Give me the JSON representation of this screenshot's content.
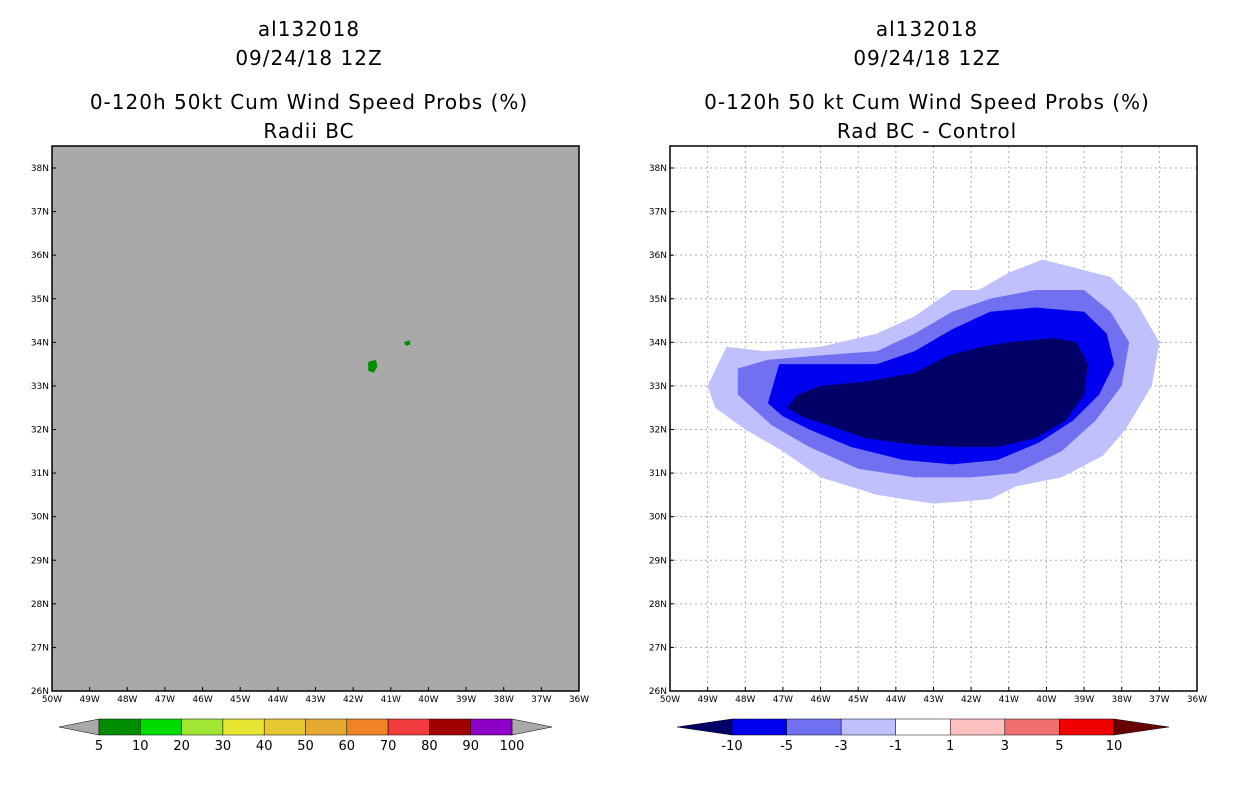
{
  "chart_data": [
    {
      "type": "heatmap",
      "storm_id": "al132018",
      "datetime": "09/24/18 12Z",
      "title": "0-120h 50kt Cum Wind Speed Probs (%)",
      "subtitle": "Radii BC",
      "x_ticks": [
        "50W",
        "49W",
        "48W",
        "47W",
        "46W",
        "45W",
        "44W",
        "43W",
        "42W",
        "41W",
        "40W",
        "39W",
        "38W",
        "37W",
        "36W"
      ],
      "y_ticks": [
        "26N",
        "27N",
        "28N",
        "29N",
        "30N",
        "31N",
        "32N",
        "33N",
        "34N",
        "35N",
        "36N",
        "37N",
        "38N"
      ],
      "xlim": [
        -50,
        -36
      ],
      "ylim": [
        26,
        38.5
      ],
      "grid": false,
      "background_color": "#a9a9a9",
      "features": [
        {
          "name": "5-10% patch",
          "color": "#008c00",
          "lonlat": [
            [
              -41.6,
              33.55
            ],
            [
              -41.4,
              33.6
            ],
            [
              -41.35,
              33.45
            ],
            [
              -41.45,
              33.3
            ],
            [
              -41.6,
              33.35
            ]
          ]
        },
        {
          "name": "5-10% patch",
          "color": "#008c00",
          "lonlat": [
            [
              -40.65,
              34.0
            ],
            [
              -40.5,
              34.05
            ],
            [
              -40.48,
              33.95
            ],
            [
              -40.6,
              33.92
            ]
          ]
        }
      ],
      "colorbar": {
        "labels": [
          "5",
          "10",
          "20",
          "30",
          "40",
          "50",
          "60",
          "70",
          "80",
          "90",
          "100"
        ],
        "colors": [
          "#008c00",
          "#00dc00",
          "#a0e632",
          "#e6e632",
          "#e6c832",
          "#e6aa32",
          "#f08228",
          "#f03c3c",
          "#a00000",
          "#8c00c8"
        ],
        "end_color": "#a9a9a9"
      }
    },
    {
      "type": "heatmap",
      "storm_id": "al132018",
      "datetime": "09/24/18 12Z",
      "title": "0-120h 50 kt Cum Wind Speed Probs (%)",
      "subtitle": "Rad BC - Control",
      "x_ticks": [
        "50W",
        "49W",
        "48W",
        "47W",
        "46W",
        "45W",
        "44W",
        "43W",
        "42W",
        "41W",
        "40W",
        "39W",
        "38W",
        "37W",
        "36W"
      ],
      "y_ticks": [
        "26N",
        "27N",
        "28N",
        "29N",
        "30N",
        "31N",
        "32N",
        "33N",
        "34N",
        "35N",
        "36N",
        "37N",
        "38N"
      ],
      "xlim": [
        -50,
        -36
      ],
      "ylim": [
        26,
        38.5
      ],
      "grid": true,
      "contours": [
        {
          "level": "-1 to -3",
          "color": "#c0c0ff",
          "lonlat": [
            [
              -49.0,
              33.0
            ],
            [
              -48.5,
              33.9
            ],
            [
              -47.5,
              33.8
            ],
            [
              -46,
              33.9
            ],
            [
              -44.5,
              34.2
            ],
            [
              -43.5,
              34.6
            ],
            [
              -42.5,
              35.2
            ],
            [
              -41.8,
              35.2
            ],
            [
              -41,
              35.6
            ],
            [
              -40.1,
              35.9
            ],
            [
              -39.2,
              35.7
            ],
            [
              -38.3,
              35.5
            ],
            [
              -37.6,
              34.9
            ],
            [
              -37.0,
              34.0
            ],
            [
              -37.2,
              33.0
            ],
            [
              -37.9,
              32.0
            ],
            [
              -38.5,
              31.4
            ],
            [
              -39.6,
              30.9
            ],
            [
              -40.8,
              30.7
            ],
            [
              -41.5,
              30.4
            ],
            [
              -43.0,
              30.3
            ],
            [
              -44.5,
              30.5
            ],
            [
              -46,
              30.9
            ],
            [
              -47,
              31.5
            ],
            [
              -48,
              32.0
            ],
            [
              -48.8,
              32.5
            ]
          ]
        },
        {
          "level": "-3 to -5",
          "color": "#7070f0",
          "lonlat": [
            [
              -48.2,
              33.4
            ],
            [
              -47.4,
              33.6
            ],
            [
              -46,
              33.7
            ],
            [
              -44.5,
              33.8
            ],
            [
              -43.5,
              34.2
            ],
            [
              -42.5,
              34.7
            ],
            [
              -41.5,
              35.0
            ],
            [
              -40.3,
              35.2
            ],
            [
              -39.0,
              35.2
            ],
            [
              -38.3,
              34.7
            ],
            [
              -37.8,
              34.0
            ],
            [
              -38.0,
              33.0
            ],
            [
              -38.7,
              32.2
            ],
            [
              -39.6,
              31.5
            ],
            [
              -40.8,
              31.0
            ],
            [
              -42.0,
              30.9
            ],
            [
              -43.5,
              30.9
            ],
            [
              -45,
              31.1
            ],
            [
              -46.3,
              31.6
            ],
            [
              -47.3,
              32.1
            ],
            [
              -48.2,
              32.8
            ]
          ]
        },
        {
          "level": "-5 to -10",
          "color": "#0000f0",
          "lonlat": [
            [
              -47.4,
              32.6
            ],
            [
              -47.1,
              33.5
            ],
            [
              -45.9,
              33.5
            ],
            [
              -44.5,
              33.5
            ],
            [
              -43.5,
              33.8
            ],
            [
              -42.5,
              34.3
            ],
            [
              -41.5,
              34.7
            ],
            [
              -40.3,
              34.8
            ],
            [
              -39.0,
              34.7
            ],
            [
              -38.4,
              34.2
            ],
            [
              -38.2,
              33.5
            ],
            [
              -38.6,
              32.8
            ],
            [
              -39.3,
              32.2
            ],
            [
              -40.2,
              31.7
            ],
            [
              -41.3,
              31.3
            ],
            [
              -42.5,
              31.2
            ],
            [
              -43.8,
              31.3
            ],
            [
              -45.2,
              31.6
            ],
            [
              -46.3,
              32.0
            ],
            [
              -47.0,
              32.3
            ]
          ]
        },
        {
          "level": "< -10",
          "color": "#000066",
          "lonlat": [
            [
              -46.9,
              32.5
            ],
            [
              -46.6,
              32.8
            ],
            [
              -46.0,
              33.0
            ],
            [
              -44.8,
              33.1
            ],
            [
              -43.5,
              33.3
            ],
            [
              -42.6,
              33.7
            ],
            [
              -41.7,
              33.9
            ],
            [
              -41.0,
              34.0
            ],
            [
              -39.8,
              34.1
            ],
            [
              -39.2,
              34.0
            ],
            [
              -38.9,
              33.5
            ],
            [
              -39.0,
              32.8
            ],
            [
              -39.5,
              32.2
            ],
            [
              -40.3,
              31.8
            ],
            [
              -41.3,
              31.6
            ],
            [
              -42.4,
              31.6
            ],
            [
              -43.5,
              31.65
            ],
            [
              -44.8,
              31.8
            ],
            [
              -45.8,
              32.1
            ],
            [
              -46.5,
              32.3
            ]
          ]
        }
      ],
      "colorbar": {
        "labels": [
          "-10",
          "-5",
          "-3",
          "-1",
          "1",
          "3",
          "5",
          "10"
        ],
        "colors": [
          "#0000f0",
          "#7070f0",
          "#c0c0ff",
          "#ffffff",
          "#ffc0c0",
          "#f07070",
          "#f00000"
        ],
        "end_colors": [
          "#000066",
          "#660000"
        ]
      }
    }
  ]
}
